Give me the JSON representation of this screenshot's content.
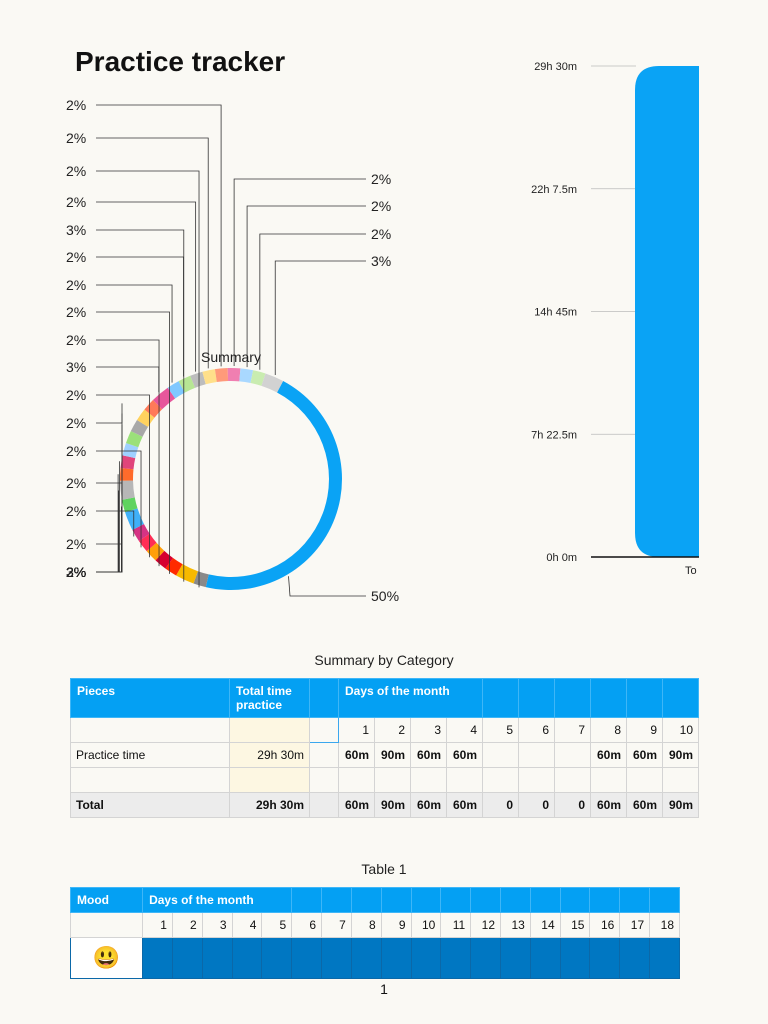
{
  "title": "Practice tracker",
  "chart_data": [
    {
      "type": "pie",
      "variant": "donut",
      "title": "Summary",
      "slices": [
        {
          "value": 50,
          "label": "50%",
          "color": "#0aa3f5"
        },
        {
          "value": 2,
          "label": "2%",
          "color": "#8a8a8a"
        },
        {
          "value": 3,
          "label": "3%",
          "color": "#f7b900"
        },
        {
          "value": 2,
          "label": "2%",
          "color": "#ff2a00"
        },
        {
          "value": 2,
          "label": "2%",
          "color": "#d6002f"
        },
        {
          "value": 2,
          "label": "2%",
          "color": "#ff9f0a"
        },
        {
          "value": 2,
          "label": "2%",
          "color": "#ff2d55"
        },
        {
          "value": 2,
          "label": "2%",
          "color": "#d63384"
        },
        {
          "value": 3,
          "label": "3%",
          "color": "#40b0f8"
        },
        {
          "value": 2,
          "label": "2%",
          "color": "#5fd35f"
        },
        {
          "value": 3,
          "label": "3%",
          "color": "#b7b7b7"
        },
        {
          "value": 2,
          "label": "2%",
          "color": "#ff6b2b"
        },
        {
          "value": 2,
          "label": "2%",
          "color": "#e0457b"
        },
        {
          "value": 2,
          "label": "2%",
          "color": "#9fd0ff"
        },
        {
          "value": 2,
          "label": "2%",
          "color": "#9be07a"
        },
        {
          "value": 2,
          "label": "2%",
          "color": "#a8a8a8"
        },
        {
          "value": 2,
          "label": "2%",
          "color": "#ffd25e"
        },
        {
          "value": 2,
          "label": "2%",
          "color": "#ff7a59"
        },
        {
          "value": 3,
          "label": "3%",
          "color": "#e7579b"
        },
        {
          "value": 2,
          "label": "2%",
          "color": "#7fc8ff"
        },
        {
          "value": 2,
          "label": "2%",
          "color": "#b7e694"
        },
        {
          "value": 2,
          "label": "2%",
          "color": "#bdbdbd"
        },
        {
          "value": 2,
          "label": "2%",
          "color": "#ffe08a"
        },
        {
          "value": 2,
          "label": "2%",
          "color": "#ff9a7a"
        },
        {
          "value": 2,
          "label": "2%",
          "color": "#f07fb1"
        },
        {
          "value": 2,
          "label": "2%",
          "color": "#a9d8ff"
        },
        {
          "value": 2,
          "label": "2%",
          "color": "#c9ecb0"
        },
        {
          "value": 3,
          "label": "3%",
          "color": "#d2d2d2"
        }
      ]
    },
    {
      "type": "bar",
      "categories": [
        "To"
      ],
      "values": [
        1770
      ],
      "value_unit": "minutes",
      "color": "#0aa3f5",
      "y_ticks": [
        "0h 0m",
        "7h 22.5m",
        "14h 45m",
        "22h 7.5m",
        "29h 30m"
      ],
      "ylim": [
        0,
        1770
      ]
    }
  ],
  "table1": {
    "title": "Summary by Category",
    "headers": [
      "Pieces",
      "Total time practice",
      "",
      "Days of the month"
    ],
    "days": [
      "1",
      "2",
      "3",
      "4",
      "5",
      "6",
      "7",
      "8",
      "9",
      "10"
    ],
    "rows": [
      {
        "label": "Practice time",
        "total": "29h 30m",
        "days": [
          "60m",
          "90m",
          "60m",
          "60m",
          "",
          "",
          "",
          "60m",
          "60m",
          "90m"
        ]
      },
      {
        "label": "",
        "total": "",
        "days": [
          "",
          "",
          "",
          "",
          "",
          "",
          "",
          "",
          "",
          ""
        ]
      }
    ],
    "total_row": {
      "label": "Total",
      "total": "29h 30m",
      "days": [
        "60m",
        "90m",
        "60m",
        "60m",
        "0",
        "0",
        "0",
        "60m",
        "60m",
        "90m"
      ]
    }
  },
  "table2": {
    "title": "Table 1",
    "headers": [
      "Mood",
      "Days of the month"
    ],
    "days": [
      "1",
      "2",
      "3",
      "4",
      "5",
      "6",
      "7",
      "8",
      "9",
      "10",
      "11",
      "12",
      "13",
      "14",
      "15",
      "16",
      "17",
      "18"
    ],
    "mood_emoji": "😃"
  },
  "page_number": "1"
}
